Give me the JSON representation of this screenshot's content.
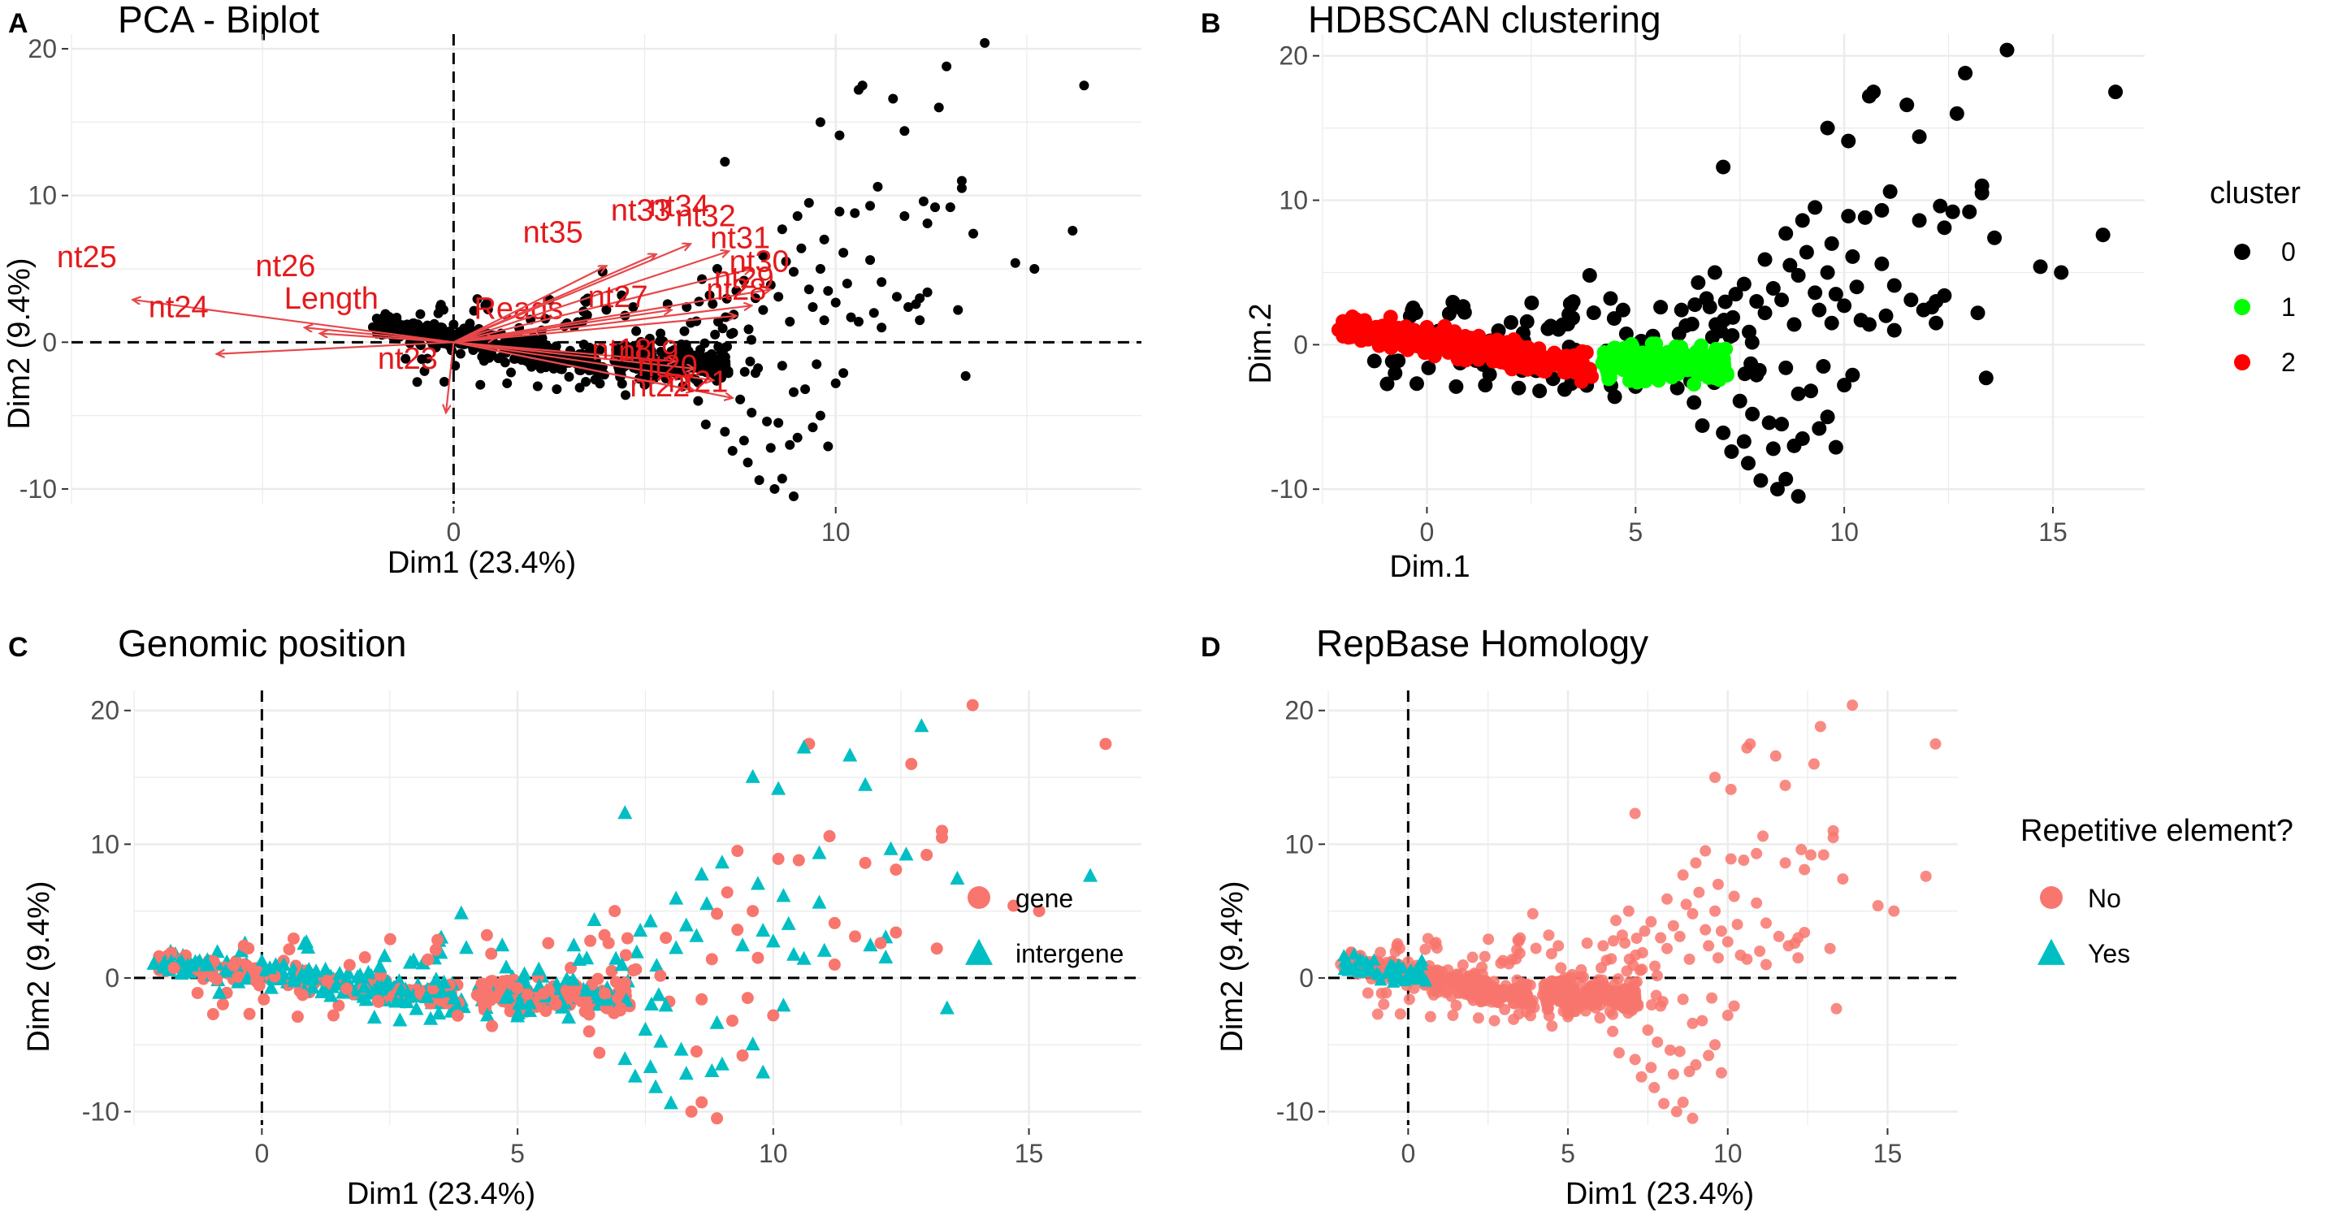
{
  "figure": {
    "panels": [
      {
        "letter": "A",
        "title": "PCA - Biplot"
      },
      {
        "letter": "B",
        "title": "HDBSCAN clustering"
      },
      {
        "letter": "C",
        "title": "Genomic position"
      },
      {
        "letter": "D",
        "title": "RepBase Homology"
      }
    ]
  },
  "chart_data": [
    {
      "id": "A",
      "type": "scatter",
      "title": "PCA - Biplot",
      "xlabel": "Dim1 (23.4%)",
      "ylabel": "Dim2 (9.4%)",
      "xlim": [
        -10,
        18
      ],
      "ylim": [
        -11,
        21
      ],
      "xticks": [
        0,
        10
      ],
      "yticks": [
        -10,
        0,
        10,
        20
      ],
      "point_color": "#000000",
      "arrow_color": "#e8474a",
      "arrows": [
        {
          "label": "nt25",
          "x": -8.4,
          "y": 2.9,
          "lx": -9.6,
          "ly": 5.1
        },
        {
          "label": "nt24",
          "x": -6.2,
          "y": -0.8,
          "lx": -7.2,
          "ly": 1.7
        },
        {
          "label": "nt26",
          "x": -3.9,
          "y": 1.0,
          "lx": -4.4,
          "ly": 4.5
        },
        {
          "label": "Length",
          "x": -3.5,
          "y": 0.6,
          "lx": -3.2,
          "ly": 2.3
        },
        {
          "label": "Reads",
          "x": 1.1,
          "y": 0.3,
          "lx": 1.7,
          "ly": 1.6
        },
        {
          "label": "nt23",
          "x": -0.2,
          "y": -4.8,
          "lx": -1.2,
          "ly": -1.8
        },
        {
          "label": "nt35",
          "x": 4.0,
          "y": 5.2,
          "lx": 2.6,
          "ly": 6.8
        },
        {
          "label": "nt33",
          "x": 5.3,
          "y": 6.0,
          "lx": 4.9,
          "ly": 8.3
        },
        {
          "label": "nt34",
          "x": 6.2,
          "y": 6.7,
          "lx": 5.9,
          "ly": 8.6
        },
        {
          "label": "nt32",
          "x": 7.2,
          "y": 6.2,
          "lx": 6.6,
          "ly": 7.9
        },
        {
          "label": "nt31",
          "x": 7.8,
          "y": 5.0,
          "lx": 7.5,
          "ly": 6.4
        },
        {
          "label": "nt30",
          "x": 8.3,
          "y": 3.6,
          "lx": 8.0,
          "ly": 4.8
        },
        {
          "label": "nt29",
          "x": 7.8,
          "y": 2.5,
          "lx": 7.6,
          "ly": 3.7
        },
        {
          "label": "nt28",
          "x": 7.4,
          "y": 1.8,
          "lx": 7.4,
          "ly": 2.9
        },
        {
          "label": "nt27",
          "x": 5.7,
          "y": 2.2,
          "lx": 4.3,
          "ly": 2.4
        },
        {
          "label": "nt18",
          "x": 5.8,
          "y": -1.3,
          "lx": 4.4,
          "ly": -1.2
        },
        {
          "label": "nt19",
          "x": 6.3,
          "y": -1.8,
          "lx": 5.1,
          "ly": -1.3
        },
        {
          "label": "nt20",
          "x": 6.8,
          "y": -2.6,
          "lx": 5.6,
          "ly": -2.3
        },
        {
          "label": "nt22",
          "x": 6.3,
          "y": -3.3,
          "lx": 5.4,
          "ly": -3.7
        },
        {
          "label": "nt21",
          "x": 7.3,
          "y": -3.8,
          "lx": 6.4,
          "ly": -3.4
        }
      ]
    },
    {
      "id": "B",
      "type": "scatter",
      "title": "HDBSCAN clustering",
      "xlabel": "Dim.1",
      "ylabel": "Dim.2",
      "xlim": [
        -2.5,
        17.2
      ],
      "ylim": [
        -11,
        21.5
      ],
      "xticks": [
        0,
        5,
        10,
        15
      ],
      "yticks": [
        -10,
        0,
        10,
        20
      ],
      "legend": {
        "title": "cluster",
        "position": "right",
        "entries": [
          {
            "label": "0",
            "color": "#000000"
          },
          {
            "label": "1",
            "color": "#00ff00"
          },
          {
            "label": "2",
            "color": "#ff0000"
          }
        ]
      }
    },
    {
      "id": "C",
      "type": "scatter",
      "title": "Genomic position",
      "xlabel": "Dim1 (23.4%)",
      "ylabel": "Dim2 (9.4%)",
      "xlim": [
        -2.5,
        17.2
      ],
      "ylim": [
        -11,
        21.5
      ],
      "xticks": [
        0,
        5,
        10,
        15
      ],
      "yticks": [
        -10,
        0,
        10,
        20
      ],
      "legend": {
        "title": "",
        "position": "right",
        "entries": [
          {
            "label": "gene",
            "color": "#f8766d",
            "shape": "circle"
          },
          {
            "label": "intergene",
            "color": "#00bfc4",
            "shape": "triangle"
          }
        ]
      }
    },
    {
      "id": "D",
      "type": "scatter",
      "title": "RepBase Homology",
      "xlabel": "Dim1 (23.4%)",
      "ylabel": "Dim2 (9.4%)",
      "xlim": [
        -2.5,
        17.2
      ],
      "ylim": [
        -11,
        21.5
      ],
      "xticks": [
        0,
        5,
        10,
        15
      ],
      "yticks": [
        -10,
        0,
        10,
        20
      ],
      "legend": {
        "title": "Repetitive element?",
        "position": "right",
        "entries": [
          {
            "label": "No",
            "color": "#f8766d",
            "shape": "circle"
          },
          {
            "label": "Yes",
            "color": "#00bfc4",
            "shape": "triangle"
          }
        ]
      }
    }
  ],
  "points": {
    "scattered": [
      [
        16.5,
        17.5
      ],
      [
        13.9,
        20.4
      ],
      [
        12.9,
        18.8
      ],
      [
        10.7,
        17.5
      ],
      [
        10.6,
        17.2
      ],
      [
        11.5,
        16.6
      ],
      [
        12.7,
        16.0
      ],
      [
        9.6,
        15.0
      ],
      [
        10.1,
        14.1
      ],
      [
        11.8,
        14.4
      ],
      [
        13.3,
        11.0
      ],
      [
        13.3,
        10.5
      ],
      [
        12.3,
        9.6
      ],
      [
        12.6,
        9.2
      ],
      [
        12.4,
        8.1
      ],
      [
        13.0,
        9.2
      ],
      [
        16.2,
        7.6
      ],
      [
        13.6,
        7.4
      ],
      [
        14.7,
        5.4
      ],
      [
        15.2,
        5.0
      ],
      [
        11.1,
        10.6
      ],
      [
        10.9,
        9.3
      ],
      [
        11.8,
        8.6
      ],
      [
        9.3,
        9.5
      ],
      [
        7.1,
        12.3
      ],
      [
        9.0,
        8.6
      ],
      [
        10.1,
        8.9
      ],
      [
        10.5,
        8.8
      ],
      [
        8.6,
        7.7
      ],
      [
        9.7,
        7.0
      ],
      [
        10.2,
        6.1
      ],
      [
        9.1,
        6.4
      ],
      [
        8.7,
        5.5
      ],
      [
        9.6,
        5.0
      ],
      [
        11.2,
        4.1
      ],
      [
        12.4,
        3.4
      ],
      [
        11.6,
        3.1
      ],
      [
        12.2,
        3.0
      ],
      [
        11.9,
        2.4
      ],
      [
        10.6,
        1.4
      ],
      [
        11.2,
        1.0
      ],
      [
        12.2,
        1.5
      ],
      [
        13.2,
        2.2
      ],
      [
        13.4,
        -2.3
      ],
      [
        10.2,
        -2.1
      ],
      [
        9.6,
        -5.0
      ],
      [
        8.5,
        -5.5
      ],
      [
        8.8,
        -7.0
      ],
      [
        8.3,
        -7.2
      ],
      [
        7.3,
        -7.4
      ],
      [
        7.7,
        -8.2
      ],
      [
        8.0,
        -9.4
      ],
      [
        8.6,
        -9.3
      ],
      [
        8.4,
        -10.0
      ],
      [
        8.9,
        -10.5
      ],
      [
        9.8,
        -7.1
      ],
      [
        9.4,
        -5.8
      ],
      [
        9.0,
        -6.5
      ],
      [
        7.6,
        -6.7
      ],
      [
        7.1,
        -6.1
      ],
      [
        6.6,
        -5.6
      ],
      [
        7.8,
        -4.8
      ],
      [
        8.2,
        -5.4
      ],
      [
        7.5,
        -3.9
      ],
      [
        8.9,
        -3.4
      ],
      [
        9.2,
        -3.2
      ],
      [
        10.0,
        -2.8
      ],
      [
        9.5,
        -1.5
      ],
      [
        8.6,
        -1.6
      ],
      [
        7.9,
        -2.1
      ],
      [
        6.4,
        -4.0
      ],
      [
        6.0,
        -3.0
      ],
      [
        5.0,
        -2.9
      ],
      [
        4.5,
        -3.6
      ],
      [
        3.3,
        -3.1
      ],
      [
        2.7,
        -3.2
      ],
      [
        2.2,
        -3.0
      ],
      [
        1.4,
        -2.8
      ],
      [
        0.7,
        -2.9
      ],
      [
        8.1,
        2.2
      ],
      [
        7.9,
        3.0
      ],
      [
        8.3,
        3.9
      ],
      [
        8.5,
        3.1
      ],
      [
        7.6,
        4.2
      ],
      [
        8.9,
        4.8
      ],
      [
        9.3,
        3.6
      ],
      [
        9.8,
        3.5
      ],
      [
        10.3,
        4.0
      ],
      [
        10.0,
        2.7
      ],
      [
        9.4,
        2.4
      ],
      [
        8.8,
        1.4
      ],
      [
        6.5,
        4.3
      ],
      [
        6.9,
        5.0
      ],
      [
        5.6,
        2.6
      ],
      [
        4.7,
        2.4
      ],
      [
        3.9,
        4.8
      ],
      [
        4.4,
        3.2
      ],
      [
        3.4,
        2.1
      ],
      [
        2.4,
        1.6
      ],
      [
        2.9,
        1.1
      ],
      [
        9.7,
        1.5
      ],
      [
        10.4,
        1.7
      ],
      [
        11.0,
        2.0
      ],
      [
        12.1,
        2.6
      ],
      [
        10.9,
        5.6
      ],
      [
        8.1,
        5.9
      ],
      [
        7.4,
        3.5
      ],
      [
        6.7,
        3.2
      ],
      [
        6.1,
        2.4
      ]
    ]
  }
}
